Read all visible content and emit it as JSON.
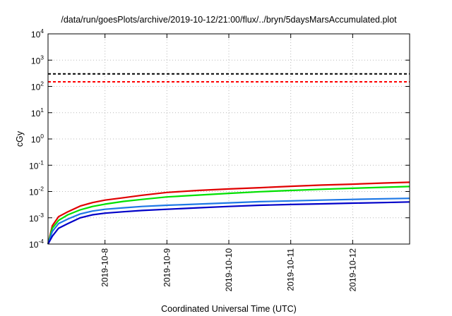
{
  "chart_data": {
    "type": "line",
    "title": "/data/run/goesPlots/archive/2019-10-12/21:00/flux/../bryn/5daysMarsAccumulated.plot",
    "xlabel": "Coordinated Universal Time (UTC)",
    "ylabel": "cGy",
    "y_scale": "log",
    "ylim": [
      0.0001,
      10000
    ],
    "xlim": [
      7.08,
      12.92
    ],
    "y_ticks": [
      {
        "base": "10",
        "exp": "-4",
        "value": 0.0001
      },
      {
        "base": "10",
        "exp": "-3",
        "value": 0.001
      },
      {
        "base": "10",
        "exp": "-2",
        "value": 0.01
      },
      {
        "base": "10",
        "exp": "-1",
        "value": 0.1
      },
      {
        "base": "10",
        "exp": "0",
        "value": 1
      },
      {
        "base": "10",
        "exp": "1",
        "value": 10
      },
      {
        "base": "10",
        "exp": "2",
        "value": 100
      },
      {
        "base": "10",
        "exp": "3",
        "value": 1000
      },
      {
        "base": "10",
        "exp": "4",
        "value": 10000
      }
    ],
    "x_ticks": [
      {
        "label": "2019-10-8",
        "value": 8
      },
      {
        "label": "2019-10-9",
        "value": 9
      },
      {
        "label": "2019-10-10",
        "value": 10
      },
      {
        "label": "2019-10-11",
        "value": 11
      },
      {
        "label": "2019-10-12",
        "value": 12
      }
    ],
    "grid": true,
    "reference_lines": [
      {
        "value": 300,
        "color": "#000000",
        "style": "dashed"
      },
      {
        "value": 150,
        "color": "#ff0000",
        "style": "dashed"
      }
    ],
    "series": [
      {
        "color": "#e00000",
        "x": [
          7.08,
          7.15,
          7.25,
          7.4,
          7.6,
          7.8,
          8.0,
          8.3,
          8.6,
          9.0,
          9.5,
          10.0,
          10.5,
          11.0,
          11.5,
          12.0,
          12.5,
          12.92
        ],
        "values": [
          0.0001,
          0.0005,
          0.0011,
          0.0017,
          0.0028,
          0.0038,
          0.0047,
          0.0058,
          0.0072,
          0.0092,
          0.011,
          0.0125,
          0.014,
          0.0158,
          0.0175,
          0.019,
          0.021,
          0.0225
        ]
      },
      {
        "color": "#00e000",
        "x": [
          7.08,
          7.15,
          7.25,
          7.4,
          7.6,
          7.8,
          8.0,
          8.3,
          8.6,
          9.0,
          9.5,
          10.0,
          10.5,
          11.0,
          11.5,
          12.0,
          12.5,
          12.92
        ],
        "values": [
          0.0001,
          0.0004,
          0.0008,
          0.0013,
          0.002,
          0.0027,
          0.0033,
          0.0042,
          0.005,
          0.0062,
          0.0073,
          0.0085,
          0.0098,
          0.011,
          0.0122,
          0.0133,
          0.0145,
          0.0155
        ]
      },
      {
        "color": "#1e78e6",
        "x": [
          7.08,
          7.15,
          7.25,
          7.4,
          7.6,
          7.8,
          8.0,
          8.3,
          8.6,
          9.0,
          9.5,
          10.0,
          10.5,
          11.0,
          11.5,
          12.0,
          12.5,
          12.92
        ],
        "values": [
          0.0001,
          0.0003,
          0.0006,
          0.0009,
          0.0014,
          0.0018,
          0.0021,
          0.0024,
          0.0027,
          0.003,
          0.0033,
          0.0037,
          0.0041,
          0.0044,
          0.0047,
          0.005,
          0.0053,
          0.0055
        ]
      },
      {
        "color": "#0000c8",
        "x": [
          7.08,
          7.15,
          7.25,
          7.4,
          7.6,
          7.8,
          8.0,
          8.3,
          8.6,
          9.0,
          9.5,
          10.0,
          10.5,
          11.0,
          11.5,
          12.0,
          12.5,
          12.92
        ],
        "values": [
          0.0001,
          0.0002,
          0.0004,
          0.0006,
          0.001,
          0.0013,
          0.0015,
          0.0017,
          0.0019,
          0.0021,
          0.0024,
          0.0027,
          0.003,
          0.0032,
          0.0034,
          0.0036,
          0.0038,
          0.004
        ]
      }
    ]
  }
}
